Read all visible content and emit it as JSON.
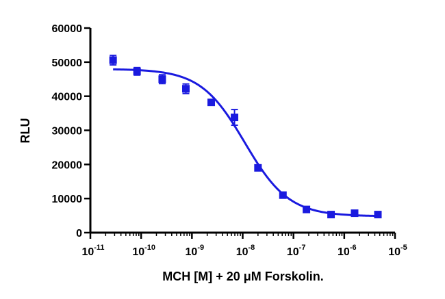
{
  "chart_data": {
    "type": "scatter",
    "xlabel": "MCH [M] + 20 μM Forskolin.",
    "ylabel": "RLU",
    "x_scale": "log",
    "xlim": [
      1e-11,
      1e-05
    ],
    "ylim": [
      0,
      60000
    ],
    "y_ticks": [
      "0",
      "10000",
      "20000",
      "30000",
      "40000",
      "50000",
      "60000"
    ],
    "x_tick_base": "10",
    "x_tick_exponents": [
      "-11",
      "-10",
      "-9",
      "-8",
      "-7",
      "-6",
      "-5"
    ],
    "color": "#1a1adf",
    "grid": false,
    "series": [
      {
        "points": [
          {
            "x": 2.8e-11,
            "y": 50600,
            "err": 1400
          },
          {
            "x": 8.3e-11,
            "y": 47300,
            "err": 1100
          },
          {
            "x": 2.6e-10,
            "y": 45000,
            "err": 1300
          },
          {
            "x": 7.6e-10,
            "y": 42200,
            "err": 1400
          },
          {
            "x": 2.4e-09,
            "y": 38200,
            "err": 700
          },
          {
            "x": 6.9e-09,
            "y": 33800,
            "err": 2300
          },
          {
            "x": 2e-08,
            "y": 19000,
            "err": 600
          },
          {
            "x": 6.2e-08,
            "y": 11000,
            "err": 500
          },
          {
            "x": 1.8e-07,
            "y": 6800,
            "err": 600
          },
          {
            "x": 5.5e-07,
            "y": 5300,
            "err": 400
          },
          {
            "x": 1.6e-06,
            "y": 5700,
            "err": 300
          },
          {
            "x": 4.6e-06,
            "y": 5300,
            "err": 600
          }
        ],
        "fit": {
          "model": "sigmoidal dose-response",
          "top": 48000,
          "bottom": 4800,
          "ec50": 1.1e-08,
          "hill": -1.0
        }
      }
    ]
  }
}
